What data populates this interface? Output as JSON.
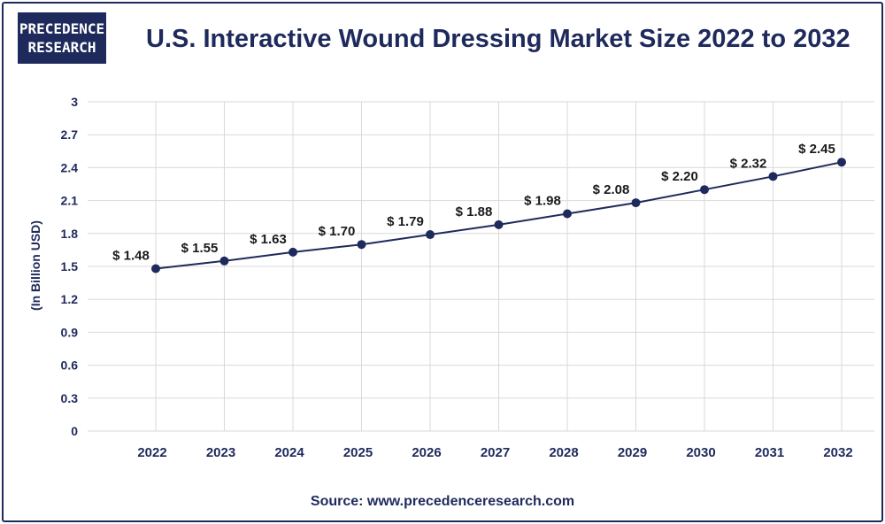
{
  "header": {
    "logo_line1": "PRECEDENCE",
    "logo_line2": "RESEARCH",
    "title": "U.S. Interactive Wound Dressing Market Size 2022 to 2032"
  },
  "footer": {
    "source": "Source: www.precedenceresearch.com"
  },
  "colors": {
    "navy": "#1f2a5c",
    "grid": "#d9d9d9"
  },
  "chart_data": {
    "type": "line",
    "title": "U.S. Interactive Wound Dressing Market Size 2022 to 2032",
    "xlabel": "",
    "ylabel": "(In Billion USD)",
    "categories": [
      "2022",
      "2023",
      "2024",
      "2025",
      "2026",
      "2027",
      "2028",
      "2029",
      "2030",
      "2031",
      "2032"
    ],
    "values": [
      1.48,
      1.55,
      1.63,
      1.7,
      1.79,
      1.88,
      1.98,
      2.08,
      2.2,
      2.32,
      2.45
    ],
    "data_labels": [
      "$ 1.48",
      "$ 1.55",
      "$ 1.63",
      "$ 1.70",
      "$ 1.79",
      "$ 1.88",
      "$ 1.98",
      "$ 2.08",
      "$ 2.20",
      "$ 2.32",
      "$ 2.45"
    ],
    "yticks": [
      "0",
      "0.3",
      "0.6",
      "0.9",
      "1.2",
      "1.5",
      "1.8",
      "2.1",
      "2.4",
      "2.7",
      "3"
    ],
    "ylim": [
      0,
      3
    ],
    "grid": true
  }
}
